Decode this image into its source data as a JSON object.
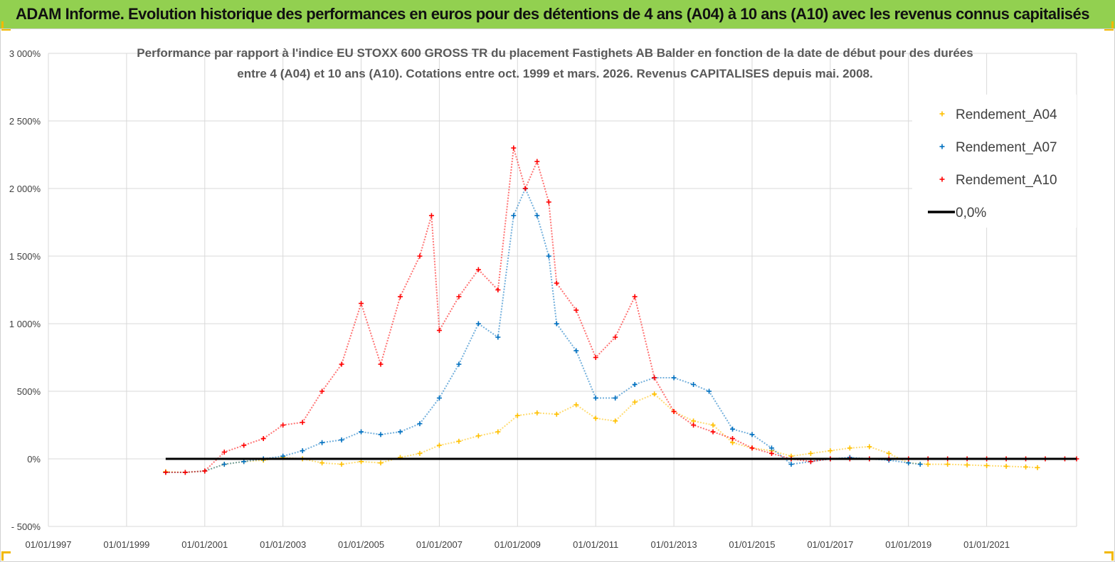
{
  "banner": {
    "title": "ADAM Informe. Evolution historique des performances en euros pour des détentions de 4 ans (A04) à 10 ans (A10) avec les revenus connus capitalisés"
  },
  "colors": {
    "banner_bg": "#92d050",
    "a04": "#ffc000",
    "a07": "#0070c0",
    "a10": "#ff0000",
    "zero": "#000000",
    "grid": "#d9d9d9"
  },
  "chart_data": {
    "type": "scatter",
    "title_lines": [
      "Performance par rapport à l'indice EU STOXX 600 GROSS TR  du placement Fastighets AB Balder en fonction de la date de début pour des durées",
      "entre 4 (A04) et 10 ans (A10). Cotations entre oct. 1999 et mars. 2026. Revenus CAPITALISES depuis mai. 2008."
    ],
    "x_axis": {
      "type": "date",
      "min": 1997.0,
      "max": 2023.3,
      "ticks": [
        1997,
        1999,
        2001,
        2003,
        2005,
        2007,
        2009,
        2011,
        2013,
        2015,
        2017,
        2019,
        2021
      ],
      "tick_labels": [
        "01/01/1997",
        "01/01/1999",
        "01/01/2001",
        "01/01/2003",
        "01/01/2005",
        "01/01/2007",
        "01/01/2009",
        "01/01/2011",
        "01/01/2013",
        "01/01/2015",
        "01/01/2017",
        "01/01/2019",
        "01/01/2021"
      ]
    },
    "y_axis": {
      "unit": "percent",
      "min": -500,
      "max": 3000,
      "ticks": [
        -500,
        0,
        500,
        1000,
        1500,
        2000,
        2500,
        3000
      ],
      "tick_labels": [
        "- 500%",
        "0%",
        "500%",
        "1 000%",
        "1 500%",
        "2 000%",
        "2 500%",
        "3 000%"
      ]
    },
    "grid": true,
    "legend": {
      "position": "top-right",
      "entries": [
        "Rendement_A04",
        "Rendement_A07",
        "Rendement_A10",
        "0,0%"
      ]
    },
    "series": [
      {
        "name": "Rendement_A04",
        "color": "#ffc000",
        "marker": "+",
        "x": [
          2000.0,
          2000.5,
          2001.0,
          2001.5,
          2002.0,
          2002.5,
          2003.0,
          2003.5,
          2004.0,
          2004.5,
          2005.0,
          2005.5,
          2006.0,
          2006.5,
          2007.0,
          2007.5,
          2008.0,
          2008.5,
          2009.0,
          2009.5,
          2010.0,
          2010.5,
          2011.0,
          2011.5,
          2012.0,
          2012.5,
          2013.0,
          2013.5,
          2014.0,
          2014.5,
          2015.0,
          2015.5,
          2016.0,
          2016.5,
          2017.0,
          2017.5,
          2018.0,
          2018.5,
          2019.0,
          2019.5,
          2020.0,
          2020.5,
          2021.0,
          2021.5,
          2022.0,
          2022.3
        ],
        "y": [
          -95,
          -100,
          -90,
          -40,
          -20,
          -10,
          10,
          0,
          -30,
          -40,
          -20,
          -30,
          10,
          40,
          100,
          130,
          170,
          200,
          320,
          340,
          330,
          400,
          300,
          280,
          420,
          480,
          350,
          280,
          250,
          120,
          80,
          60,
          20,
          40,
          60,
          80,
          90,
          40,
          -30,
          -40,
          -40,
          -45,
          -50,
          -55,
          -60,
          -65
        ]
      },
      {
        "name": "Rendement_A07",
        "color": "#0070c0",
        "marker": "+",
        "x": [
          2000.0,
          2000.5,
          2001.0,
          2001.5,
          2002.0,
          2002.5,
          2003.0,
          2003.5,
          2004.0,
          2004.5,
          2005.0,
          2005.5,
          2006.0,
          2006.5,
          2007.0,
          2007.5,
          2008.0,
          2008.5,
          2008.9,
          2009.2,
          2009.5,
          2009.8,
          2010.0,
          2010.5,
          2011.0,
          2011.5,
          2012.0,
          2012.5,
          2013.0,
          2013.5,
          2013.9,
          2014.5,
          2015.0,
          2015.5,
          2016.0,
          2016.5,
          2017.0,
          2017.5,
          2018.0,
          2018.5,
          2019.0,
          2019.3
        ],
        "y": [
          -100,
          -100,
          -90,
          -40,
          -20,
          0,
          20,
          60,
          120,
          140,
          200,
          180,
          200,
          260,
          450,
          700,
          1000,
          900,
          1800,
          2000,
          1800,
          1500,
          1000,
          800,
          450,
          450,
          550,
          600,
          600,
          550,
          500,
          220,
          180,
          80,
          -40,
          -20,
          0,
          10,
          0,
          -10,
          -30,
          -40
        ]
      },
      {
        "name": "Rendement_A10",
        "color": "#ff0000",
        "marker": "+",
        "x": [
          2000.0,
          2000.5,
          2001.0,
          2001.5,
          2002.0,
          2002.5,
          2003.0,
          2003.5,
          2004.0,
          2004.5,
          2005.0,
          2005.5,
          2006.0,
          2006.5,
          2006.8,
          2007.0,
          2007.5,
          2008.0,
          2008.5,
          2008.9,
          2009.2,
          2009.5,
          2009.8,
          2010.0,
          2010.5,
          2011.0,
          2011.5,
          2012.0,
          2012.5,
          2013.0,
          2013.5,
          2014.0,
          2014.5,
          2015.0,
          2015.5,
          2016.0,
          2016.5,
          2017.0,
          2017.5,
          2018.0,
          2018.5,
          2019.0,
          2019.5,
          2020.0,
          2020.5,
          2021.0,
          2021.5,
          2022.0,
          2022.5,
          2023.0,
          2023.3
        ],
        "y": [
          -100,
          -100,
          -90,
          50,
          100,
          150,
          250,
          270,
          500,
          700,
          1150,
          700,
          1200,
          1500,
          1800,
          950,
          1200,
          1400,
          1250,
          2300,
          2000,
          2200,
          1900,
          1300,
          1100,
          750,
          900,
          1200,
          600,
          350,
          250,
          200,
          150,
          80,
          40,
          0,
          -20,
          0,
          0,
          0,
          0,
          0,
          0,
          0,
          0,
          0,
          0,
          0,
          0,
          0,
          0
        ]
      },
      {
        "name": "0,0%",
        "color": "#000000",
        "type": "line",
        "x": [
          2000.0,
          2023.3
        ],
        "y": [
          0,
          0
        ]
      }
    ]
  }
}
